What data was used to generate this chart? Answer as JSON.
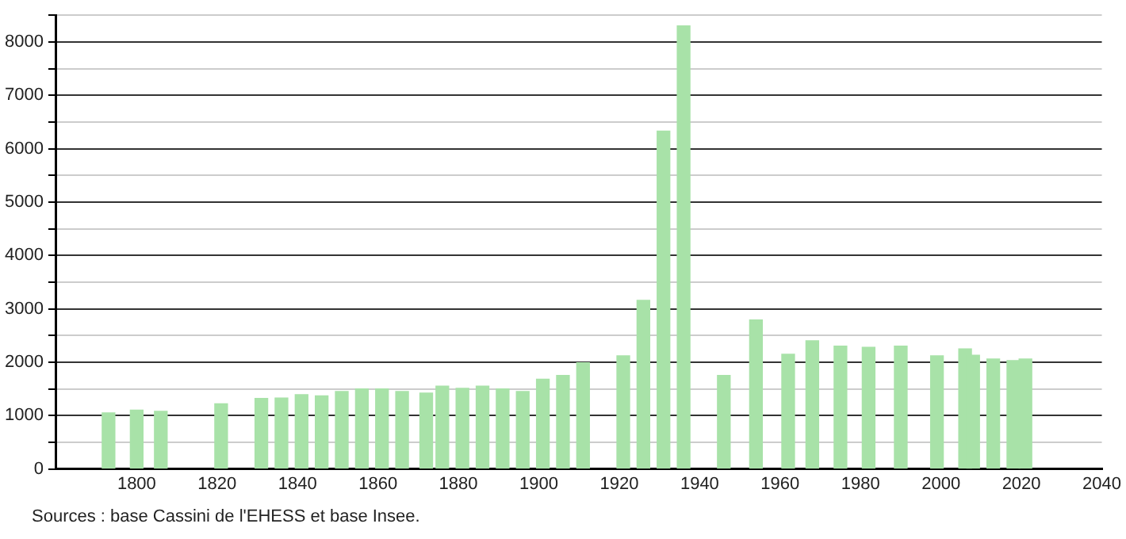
{
  "chart_data": {
    "type": "bar",
    "x": [
      1793,
      1800,
      1806,
      1821,
      1831,
      1836,
      1841,
      1846,
      1851,
      1856,
      1861,
      1866,
      1872,
      1876,
      1881,
      1886,
      1891,
      1896,
      1901,
      1906,
      1911,
      1921,
      1926,
      1931,
      1936,
      1946,
      1954,
      1962,
      1968,
      1975,
      1982,
      1990,
      1999,
      2006,
      2008,
      2013,
      2018,
      2020,
      2021
    ],
    "values": [
      1050,
      1100,
      1080,
      1220,
      1320,
      1330,
      1390,
      1370,
      1450,
      1500,
      1500,
      1450,
      1420,
      1550,
      1510,
      1550,
      1500,
      1450,
      1680,
      1750,
      1990,
      2120,
      3160,
      6330,
      8300,
      1750,
      2790,
      2150,
      2400,
      2300,
      2280,
      2300,
      2120,
      2250,
      2130,
      2060,
      2030,
      null,
      2060
    ],
    "color": "#a8e2a8",
    "xlim": [
      1780,
      2040
    ],
    "xticks": [
      1800,
      1820,
      1840,
      1860,
      1880,
      1900,
      1920,
      1940,
      1960,
      1980,
      2000,
      2020,
      2040
    ],
    "ylim": [
      0,
      8500
    ],
    "yticks": [
      0,
      {
        "value": 500,
        "label": null
      },
      1000,
      {
        "value": 1500,
        "label": null
      },
      2000,
      {
        "value": 2500,
        "label": null
      },
      3000,
      {
        "value": 3500,
        "label": null
      },
      4000,
      {
        "value": 4500,
        "label": null
      },
      5000,
      {
        "value": 5500,
        "label": null
      },
      6000,
      {
        "value": 6500,
        "label": null
      },
      7000,
      {
        "value": 7500,
        "label": null
      },
      8000,
      {
        "value": 8500,
        "label": null
      }
    ],
    "grid": "y",
    "legend": false,
    "annotations": [
      "Sources : base Cassini de l'EHESS et base Insee."
    ]
  }
}
